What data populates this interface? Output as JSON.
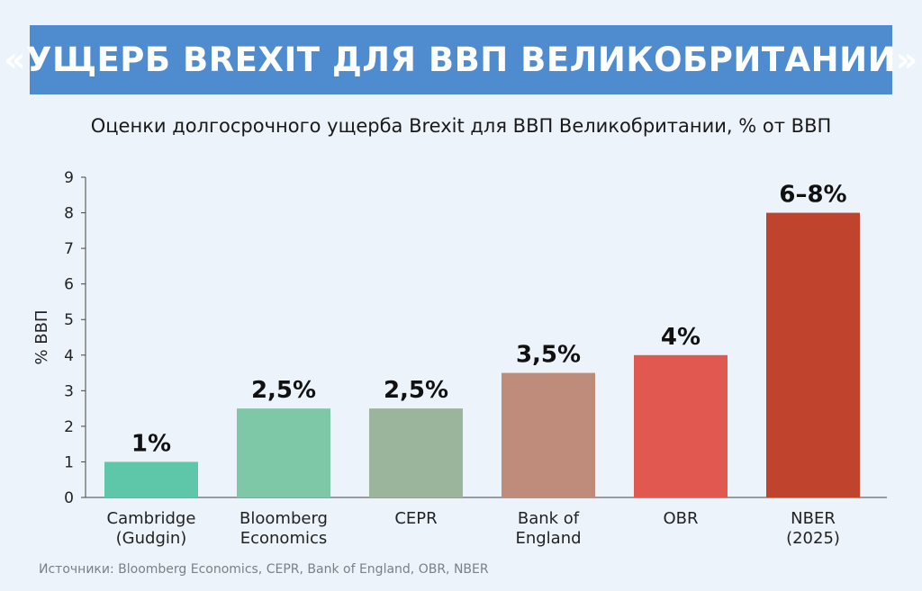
{
  "header": {
    "title": "«УЩЕРБ BREXIT ДЛЯ ВВП ВЕЛИКОБРИТАНИИ»",
    "subtitle": "Оценки долгосрочного ущерба Brexit для ВВП Великобритании, % от ВВП"
  },
  "footer": {
    "source": "Источники: Bloomberg Economics, CEPR, Bank of England, OBR, NBER"
  },
  "chart_data": {
    "type": "bar",
    "categories": [
      [
        "Cambridge",
        "(Gudgin)"
      ],
      [
        "Bloomberg",
        "Economics"
      ],
      [
        "CEPR"
      ],
      [
        "Bank of",
        "England"
      ],
      [
        "OBR"
      ],
      [
        "NBER",
        "(2025)"
      ]
    ],
    "values": [
      1,
      2.5,
      2.5,
      3.5,
      4,
      8
    ],
    "data_labels": [
      "1%",
      "2,5%",
      "2,5%",
      "3,5%",
      "4%",
      "6–8%"
    ],
    "colors": [
      "#5fc7a9",
      "#7ec7a7",
      "#9bb59c",
      "#bf8b7a",
      "#e0584f",
      "#c0432e"
    ],
    "ylabel": "% ВВП",
    "ylim": [
      0,
      9
    ],
    "yticks": [
      0,
      1,
      2,
      3,
      4,
      5,
      6,
      7,
      8,
      9
    ],
    "grid": false
  }
}
